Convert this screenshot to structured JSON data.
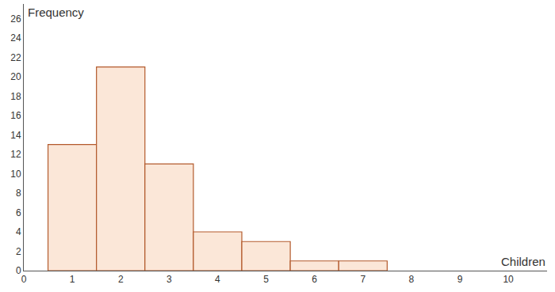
{
  "chart_data": {
    "type": "histogram",
    "x_label": "Children",
    "y_label": "Frequency",
    "bins": [
      0.5,
      1.5,
      2.5,
      3.5,
      4.5,
      5.5,
      6.5,
      7.5
    ],
    "values": [
      13,
      21,
      11,
      4,
      3,
      1,
      1
    ],
    "color": "#fbe7d8",
    "xlim": [
      0,
      10.8
    ],
    "xticks": [
      0,
      1,
      2,
      3,
      4,
      5,
      6,
      7,
      8,
      9,
      10
    ],
    "ylim": [
      0,
      27.5
    ],
    "yticks": [
      0,
      2,
      4,
      6,
      8,
      10,
      12,
      14,
      16,
      18,
      20,
      22,
      24,
      26
    ],
    "grid": false
  }
}
